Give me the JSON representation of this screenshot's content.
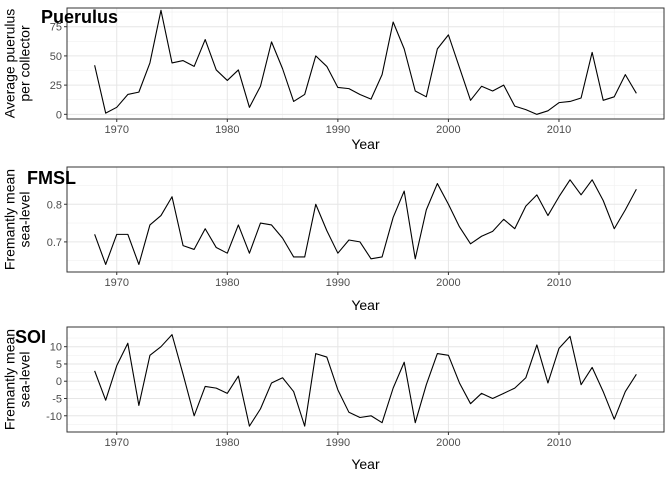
{
  "chart_data": [
    {
      "type": "line",
      "title": "Puerulus",
      "xlabel": "Year",
      "ylabel": [
        "Average puerulus",
        "per collector"
      ],
      "xlim": [
        1965.5,
        2019.5
      ],
      "ylim": [
        -4,
        91
      ],
      "xticks": [
        1970,
        1980,
        1990,
        2000,
        2010
      ],
      "yticks": [
        0,
        25,
        50,
        75
      ],
      "grid": true,
      "x": [
        1968,
        1969,
        1970,
        1971,
        1972,
        1973,
        1974,
        1975,
        1976,
        1977,
        1978,
        1979,
        1980,
        1981,
        1982,
        1983,
        1984,
        1985,
        1986,
        1987,
        1988,
        1989,
        1990,
        1991,
        1992,
        1993,
        1994,
        1995,
        1996,
        1997,
        1998,
        1999,
        2000,
        2001,
        2002,
        2003,
        2004,
        2005,
        2006,
        2007,
        2008,
        2009,
        2010,
        2011,
        2012,
        2013,
        2014,
        2015,
        2016,
        2017
      ],
      "values": [
        42,
        1,
        6,
        17,
        19,
        44,
        89,
        44,
        46,
        41,
        64,
        38,
        29,
        38,
        6,
        24,
        62,
        39,
        11,
        17,
        50,
        41,
        23,
        22,
        17,
        13,
        34,
        79,
        56,
        20,
        15,
        56,
        68,
        40,
        12,
        24,
        20,
        25,
        7,
        4,
        0,
        3,
        10,
        11,
        14,
        53,
        12,
        15,
        34,
        18
      ],
      "color": "#000000"
    },
    {
      "type": "line",
      "title": "FMSL",
      "xlabel": "Year",
      "ylabel": [
        "Fremantly mean",
        "sea-level"
      ],
      "xlim": [
        1965.5,
        2019.5
      ],
      "ylim": [
        0.62,
        0.899
      ],
      "xticks": [
        1970,
        1980,
        1990,
        2000,
        2010
      ],
      "yticks": [
        0.7,
        0.8
      ],
      "grid": true,
      "x": [
        1968,
        1969,
        1970,
        1971,
        1972,
        1973,
        1974,
        1975,
        1976,
        1977,
        1978,
        1979,
        1980,
        1981,
        1982,
        1983,
        1984,
        1985,
        1986,
        1987,
        1988,
        1989,
        1990,
        1991,
        1992,
        1993,
        1994,
        1995,
        1996,
        1997,
        1998,
        1999,
        2000,
        2001,
        2002,
        2003,
        2004,
        2005,
        2006,
        2007,
        2008,
        2009,
        2010,
        2011,
        2012,
        2013,
        2014,
        2015,
        2016,
        2017
      ],
      "values": [
        0.72,
        0.64,
        0.72,
        0.72,
        0.64,
        0.745,
        0.77,
        0.82,
        0.69,
        0.68,
        0.735,
        0.685,
        0.67,
        0.745,
        0.67,
        0.75,
        0.745,
        0.71,
        0.66,
        0.66,
        0.8,
        0.73,
        0.67,
        0.705,
        0.7,
        0.655,
        0.66,
        0.765,
        0.835,
        0.655,
        0.785,
        0.855,
        0.8,
        0.74,
        0.695,
        0.715,
        0.728,
        0.76,
        0.735,
        0.795,
        0.825,
        0.77,
        0.82,
        0.865,
        0.825,
        0.865,
        0.81,
        0.735,
        0.785,
        0.84
      ],
      "color": "#000000"
    },
    {
      "type": "line",
      "title": "SOI",
      "xlabel": "Year",
      "ylabel": [
        "Fremantly mean",
        "sea-level"
      ],
      "xlim": [
        1965.5,
        2019.5
      ],
      "ylim": [
        -14.7,
        15.7
      ],
      "xticks": [
        1970,
        1980,
        1990,
        2000,
        2010
      ],
      "yticks": [
        -10,
        -5,
        0,
        5,
        10
      ],
      "grid": true,
      "x": [
        1968,
        1969,
        1970,
        1971,
        1972,
        1973,
        1974,
        1975,
        1976,
        1977,
        1978,
        1979,
        1980,
        1981,
        1982,
        1983,
        1984,
        1985,
        1986,
        1987,
        1988,
        1989,
        1990,
        1991,
        1992,
        1993,
        1994,
        1995,
        1996,
        1997,
        1998,
        1999,
        2000,
        2001,
        2002,
        2003,
        2004,
        2005,
        2006,
        2007,
        2008,
        2009,
        2010,
        2011,
        2012,
        2013,
        2014,
        2015,
        2016,
        2017
      ],
      "values": [
        3,
        -5.5,
        4.5,
        11,
        -7,
        7.5,
        10,
        13.5,
        2,
        -10,
        -1.5,
        -2,
        -3.5,
        1.5,
        -13,
        -8,
        -0.5,
        1,
        -3,
        -13,
        8,
        7,
        -2.5,
        -9,
        -10.5,
        -10,
        -12,
        -2,
        5.5,
        -12,
        -1,
        8,
        7.5,
        -0.5,
        -6.5,
        -3.5,
        -5,
        -3.5,
        -2,
        1,
        10.5,
        -0.5,
        9.5,
        13,
        -1,
        4,
        -3,
        -11,
        -3,
        2
      ],
      "color": "#000000"
    }
  ]
}
